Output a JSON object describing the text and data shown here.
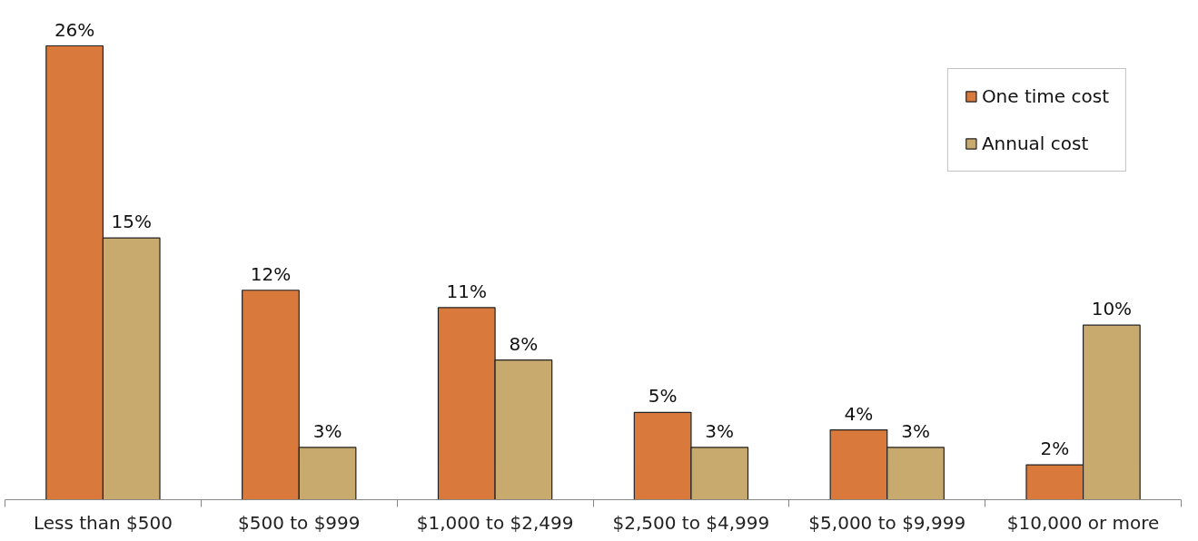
{
  "chart_data": {
    "type": "bar",
    "categories": [
      "Less than $500",
      "$500 to $999",
      "$1,000 to $2,499",
      "$2,500 to $4,999",
      "$5,000 to $9,999",
      "$10,000 or more"
    ],
    "series": [
      {
        "name": "One time cost",
        "color": "#d97a3c",
        "values": [
          26,
          12,
          11,
          5,
          4,
          2
        ],
        "value_labels": [
          "26%",
          "12%",
          "11%",
          "5%",
          "4%",
          "2%"
        ]
      },
      {
        "name": "Annual cost",
        "color": "#c9aa6e",
        "values": [
          15,
          3,
          8,
          3,
          3,
          10
        ],
        "value_labels": [
          "15%",
          "3%",
          "8%",
          "3%",
          "3%",
          "10%"
        ]
      }
    ],
    "legend": "top right",
    "grid": false
  }
}
